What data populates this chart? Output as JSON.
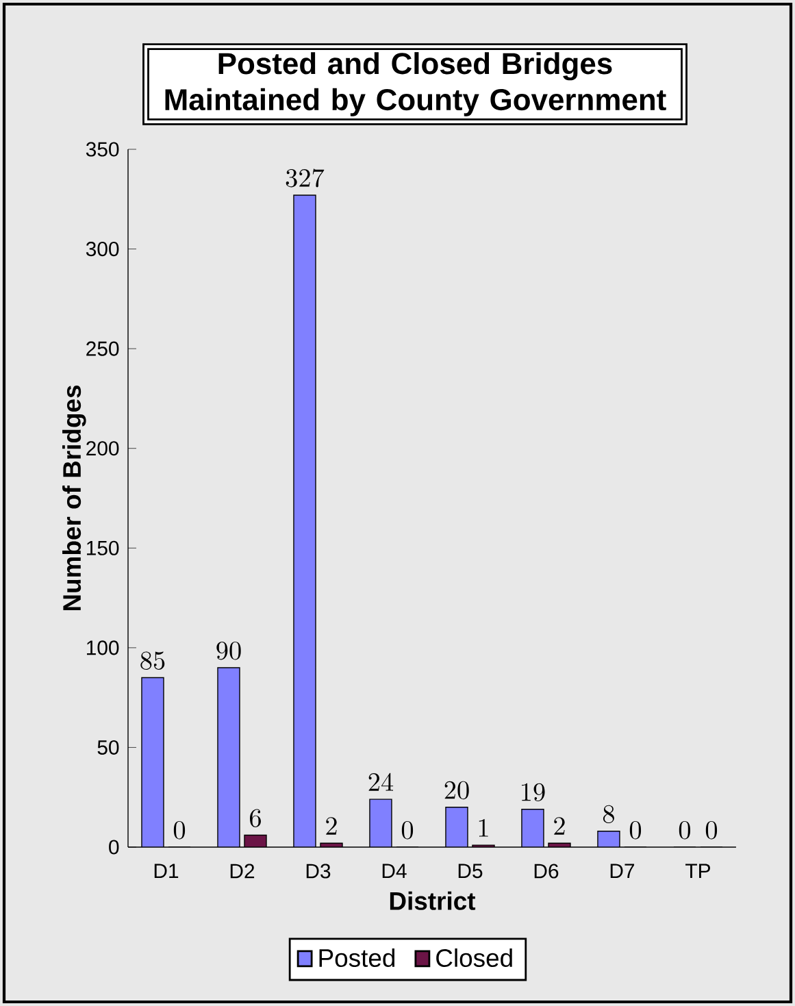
{
  "chart_data": {
    "type": "bar",
    "title": "Posted and Closed Bridges Maintained by County Government",
    "xlabel": "District",
    "ylabel": "Number of Bridges",
    "categories": [
      "D1",
      "D2",
      "D3",
      "D4",
      "D5",
      "D6",
      "D7",
      "TP"
    ],
    "series": [
      {
        "name": "Posted",
        "color": "#8080ff",
        "values": [
          85,
          90,
          327,
          24,
          20,
          19,
          8,
          0
        ]
      },
      {
        "name": "Closed",
        "color": "#6b1446",
        "values": [
          0,
          6,
          2,
          0,
          1,
          2,
          0,
          0
        ]
      }
    ],
    "ylim": [
      0,
      350
    ],
    "yticks": [
      0,
      50,
      100,
      150,
      200,
      250,
      300,
      350
    ],
    "data_labels": true,
    "legend": "bottom"
  }
}
